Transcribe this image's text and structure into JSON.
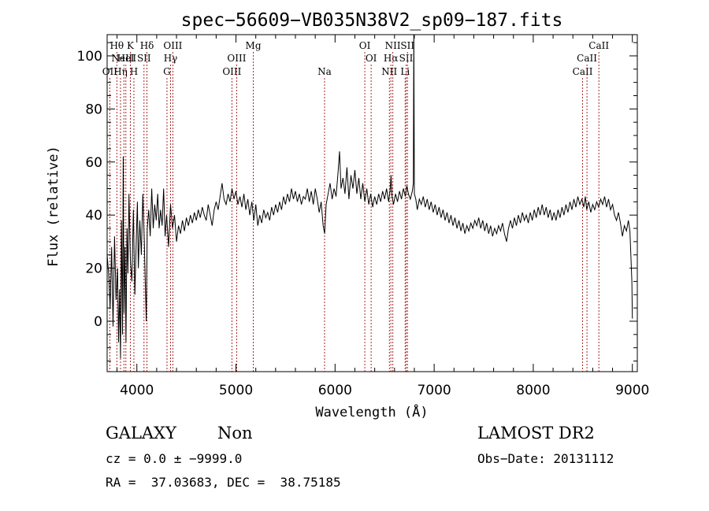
{
  "chart_data": {
    "type": "line",
    "title": "spec−56609−VB035N38V2_sp09−187.fits",
    "xlabel": "Wavelength (Å)",
    "ylabel": "Flux (relative)",
    "xlim": [
      3700,
      9050
    ],
    "ylim": [
      -19,
      108
    ],
    "xticks": [
      4000,
      5000,
      6000,
      7000,
      8000,
      9000
    ],
    "yticks": [
      0,
      20,
      40,
      60,
      80,
      100
    ],
    "grid": false,
    "series": [
      {
        "points": [
          [
            3700,
            25
          ],
          [
            3715,
            18
          ],
          [
            3730,
            5
          ],
          [
            3745,
            28
          ],
          [
            3760,
            -2
          ],
          [
            3775,
            32
          ],
          [
            3790,
            8
          ],
          [
            3805,
            20
          ],
          [
            3815,
            -8
          ],
          [
            3825,
            12
          ],
          [
            3835,
            -14
          ],
          [
            3845,
            38
          ],
          [
            3855,
            -5
          ],
          [
            3862,
            62
          ],
          [
            3870,
            3
          ],
          [
            3880,
            28
          ],
          [
            3890,
            -8
          ],
          [
            3900,
            35
          ],
          [
            3910,
            18
          ],
          [
            3920,
            48
          ],
          [
            3935,
            22
          ],
          [
            3950,
            15
          ],
          [
            3965,
            42
          ],
          [
            3980,
            10
          ],
          [
            3995,
            32
          ],
          [
            4005,
            45
          ],
          [
            4015,
            20
          ],
          [
            4030,
            38
          ],
          [
            4045,
            25
          ],
          [
            4060,
            48
          ],
          [
            4075,
            30
          ],
          [
            4085,
            15
          ],
          [
            4095,
            0
          ],
          [
            4105,
            35
          ],
          [
            4120,
            42
          ],
          [
            4135,
            32
          ],
          [
            4150,
            50
          ],
          [
            4165,
            35
          ],
          [
            4180,
            44
          ],
          [
            4195,
            38
          ],
          [
            4210,
            48
          ],
          [
            4225,
            35
          ],
          [
            4240,
            42
          ],
          [
            4255,
            36
          ],
          [
            4270,
            50
          ],
          [
            4285,
            32
          ],
          [
            4300,
            40
          ],
          [
            4320,
            28
          ],
          [
            4340,
            44
          ],
          [
            4360,
            35
          ],
          [
            4380,
            40
          ],
          [
            4400,
            30
          ],
          [
            4420,
            36
          ],
          [
            4440,
            33
          ],
          [
            4460,
            38
          ],
          [
            4480,
            34
          ],
          [
            4500,
            39
          ],
          [
            4520,
            36
          ],
          [
            4540,
            40
          ],
          [
            4560,
            37
          ],
          [
            4580,
            41
          ],
          [
            4600,
            38
          ],
          [
            4620,
            42
          ],
          [
            4640,
            39
          ],
          [
            4660,
            43
          ],
          [
            4680,
            40
          ],
          [
            4700,
            38
          ],
          [
            4720,
            44
          ],
          [
            4740,
            40
          ],
          [
            4760,
            36
          ],
          [
            4780,
            42
          ],
          [
            4800,
            45
          ],
          [
            4820,
            42
          ],
          [
            4840,
            47
          ],
          [
            4860,
            52
          ],
          [
            4880,
            46
          ],
          [
            4900,
            44
          ],
          [
            4920,
            48
          ],
          [
            4940,
            45
          ],
          [
            4960,
            50
          ],
          [
            4980,
            46
          ],
          [
            5000,
            49
          ],
          [
            5020,
            44
          ],
          [
            5040,
            47
          ],
          [
            5060,
            43
          ],
          [
            5080,
            48
          ],
          [
            5100,
            42
          ],
          [
            5120,
            46
          ],
          [
            5140,
            40
          ],
          [
            5160,
            45
          ],
          [
            5180,
            38
          ],
          [
            5200,
            44
          ],
          [
            5220,
            36
          ],
          [
            5240,
            40
          ],
          [
            5260,
            37
          ],
          [
            5280,
            42
          ],
          [
            5300,
            39
          ],
          [
            5320,
            41
          ],
          [
            5340,
            38
          ],
          [
            5360,
            43
          ],
          [
            5380,
            40
          ],
          [
            5400,
            44
          ],
          [
            5420,
            41
          ],
          [
            5440,
            45
          ],
          [
            5460,
            42
          ],
          [
            5480,
            47
          ],
          [
            5500,
            44
          ],
          [
            5520,
            48
          ],
          [
            5540,
            45
          ],
          [
            5560,
            50
          ],
          [
            5580,
            46
          ],
          [
            5600,
            49
          ],
          [
            5620,
            45
          ],
          [
            5640,
            48
          ],
          [
            5660,
            44
          ],
          [
            5680,
            47
          ],
          [
            5700,
            46
          ],
          [
            5720,
            50
          ],
          [
            5740,
            45
          ],
          [
            5760,
            49
          ],
          [
            5780,
            44
          ],
          [
            5800,
            50
          ],
          [
            5820,
            46
          ],
          [
            5840,
            41
          ],
          [
            5860,
            45
          ],
          [
            5880,
            36
          ],
          [
            5895,
            33
          ],
          [
            5910,
            44
          ],
          [
            5930,
            48
          ],
          [
            5950,
            52
          ],
          [
            5970,
            46
          ],
          [
            5990,
            50
          ],
          [
            6010,
            47
          ],
          [
            6030,
            56
          ],
          [
            6045,
            64
          ],
          [
            6060,
            50
          ],
          [
            6080,
            54
          ],
          [
            6100,
            48
          ],
          [
            6120,
            58
          ],
          [
            6140,
            46
          ],
          [
            6160,
            55
          ],
          [
            6180,
            50
          ],
          [
            6200,
            57
          ],
          [
            6220,
            48
          ],
          [
            6240,
            54
          ],
          [
            6260,
            46
          ],
          [
            6280,
            52
          ],
          [
            6300,
            45
          ],
          [
            6320,
            50
          ],
          [
            6340,
            44
          ],
          [
            6360,
            48
          ],
          [
            6380,
            43
          ],
          [
            6400,
            47
          ],
          [
            6420,
            44
          ],
          [
            6440,
            48
          ],
          [
            6460,
            45
          ],
          [
            6480,
            49
          ],
          [
            6500,
            46
          ],
          [
            6520,
            50
          ],
          [
            6540,
            45
          ],
          [
            6555,
            49
          ],
          [
            6565,
            55
          ],
          [
            6575,
            47
          ],
          [
            6590,
            44
          ],
          [
            6610,
            48
          ],
          [
            6630,
            45
          ],
          [
            6650,
            49
          ],
          [
            6670,
            46
          ],
          [
            6690,
            50
          ],
          [
            6710,
            47
          ],
          [
            6725,
            51
          ],
          [
            6740,
            48
          ],
          [
            6760,
            46
          ],
          [
            6780,
            49
          ],
          [
            6790,
            52
          ],
          [
            6795,
            110
          ],
          [
            6800,
            48
          ],
          [
            6815,
            46
          ],
          [
            6830,
            42
          ],
          [
            6850,
            46
          ],
          [
            6870,
            44
          ],
          [
            6890,
            47
          ],
          [
            6910,
            43
          ],
          [
            6930,
            46
          ],
          [
            6950,
            42
          ],
          [
            6970,
            45
          ],
          [
            6990,
            41
          ],
          [
            7010,
            44
          ],
          [
            7030,
            40
          ],
          [
            7050,
            43
          ],
          [
            7070,
            39
          ],
          [
            7090,
            42
          ],
          [
            7110,
            38
          ],
          [
            7130,
            41
          ],
          [
            7150,
            37
          ],
          [
            7170,
            40
          ],
          [
            7190,
            36
          ],
          [
            7210,
            39
          ],
          [
            7230,
            35
          ],
          [
            7250,
            38
          ],
          [
            7270,
            34
          ],
          [
            7290,
            37
          ],
          [
            7310,
            33
          ],
          [
            7330,
            36
          ],
          [
            7350,
            34
          ],
          [
            7370,
            37
          ],
          [
            7390,
            35
          ],
          [
            7410,
            38
          ],
          [
            7430,
            36
          ],
          [
            7450,
            39
          ],
          [
            7470,
            35
          ],
          [
            7490,
            38
          ],
          [
            7510,
            34
          ],
          [
            7530,
            37
          ],
          [
            7550,
            33
          ],
          [
            7570,
            36
          ],
          [
            7590,
            32
          ],
          [
            7610,
            35
          ],
          [
            7630,
            33
          ],
          [
            7650,
            36
          ],
          [
            7670,
            34
          ],
          [
            7690,
            37
          ],
          [
            7710,
            33
          ],
          [
            7730,
            30
          ],
          [
            7750,
            35
          ],
          [
            7770,
            38
          ],
          [
            7790,
            35
          ],
          [
            7810,
            39
          ],
          [
            7830,
            36
          ],
          [
            7850,
            40
          ],
          [
            7870,
            37
          ],
          [
            7890,
            41
          ],
          [
            7910,
            38
          ],
          [
            7930,
            40
          ],
          [
            7950,
            37
          ],
          [
            7970,
            41
          ],
          [
            7990,
            38
          ],
          [
            8010,
            42
          ],
          [
            8030,
            39
          ],
          [
            8050,
            43
          ],
          [
            8070,
            40
          ],
          [
            8090,
            44
          ],
          [
            8110,
            40
          ],
          [
            8130,
            43
          ],
          [
            8150,
            39
          ],
          [
            8170,
            42
          ],
          [
            8190,
            38
          ],
          [
            8210,
            41
          ],
          [
            8230,
            38
          ],
          [
            8250,
            42
          ],
          [
            8270,
            39
          ],
          [
            8290,
            43
          ],
          [
            8310,
            40
          ],
          [
            8330,
            44
          ],
          [
            8350,
            41
          ],
          [
            8370,
            45
          ],
          [
            8390,
            42
          ],
          [
            8410,
            46
          ],
          [
            8430,
            43
          ],
          [
            8450,
            47
          ],
          [
            8470,
            44
          ],
          [
            8490,
            46
          ],
          [
            8510,
            43
          ],
          [
            8525,
            47
          ],
          [
            8540,
            42
          ],
          [
            8560,
            45
          ],
          [
            8580,
            41
          ],
          [
            8600,
            44
          ],
          [
            8620,
            42
          ],
          [
            8640,
            45
          ],
          [
            8660,
            43
          ],
          [
            8680,
            46
          ],
          [
            8700,
            44
          ],
          [
            8720,
            47
          ],
          [
            8740,
            43
          ],
          [
            8760,
            46
          ],
          [
            8780,
            42
          ],
          [
            8800,
            44
          ],
          [
            8820,
            40
          ],
          [
            8840,
            38
          ],
          [
            8860,
            41
          ],
          [
            8880,
            37
          ],
          [
            8900,
            32
          ],
          [
            8920,
            36
          ],
          [
            8940,
            34
          ],
          [
            8960,
            38
          ],
          [
            8975,
            34
          ],
          [
            8985,
            25
          ],
          [
            8995,
            15
          ],
          [
            9000,
            1
          ]
        ]
      }
    ],
    "lines": [
      {
        "x": 3727,
        "label": "OII",
        "row": 3
      },
      {
        "x": 3798,
        "label": "Hθ",
        "row": 1
      },
      {
        "x": 3835,
        "label": "Hη",
        "row": 3
      },
      {
        "x": 3869,
        "label": "NeIII",
        "row": 2
      },
      {
        "x": 3889,
        "label": "HeI",
        "row": 2
      },
      {
        "x": 3934,
        "label": "K",
        "row": 1
      },
      {
        "x": 3970,
        "label": "H",
        "row": 3
      },
      {
        "x": 4072,
        "label": "SII",
        "row": 2
      },
      {
        "x": 4102,
        "label": "Hδ",
        "row": 1
      },
      {
        "x": 4304,
        "label": "G",
        "row": 3
      },
      {
        "x": 4340,
        "label": "Hγ",
        "row": 2
      },
      {
        "x": 4363,
        "label": "OIII",
        "row": 1
      },
      {
        "x": 4959,
        "label": "OIII",
        "row": 3
      },
      {
        "x": 5007,
        "label": "OIII",
        "row": 2
      },
      {
        "x": 5175,
        "label": "Mg",
        "row": 1
      },
      {
        "x": 5894,
        "label": "Na",
        "row": 3
      },
      {
        "x": 6300,
        "label": "OI",
        "row": 1
      },
      {
        "x": 6364,
        "label": "OI",
        "row": 2
      },
      {
        "x": 6548,
        "label": "NII",
        "row": 3
      },
      {
        "x": 6563,
        "label": "Hα",
        "row": 2
      },
      {
        "x": 6583,
        "label": "NII",
        "row": 1
      },
      {
        "x": 6707,
        "label": "Li",
        "row": 3
      },
      {
        "x": 6717,
        "label": "SII",
        "row": 2
      },
      {
        "x": 6731,
        "label": "SII",
        "row": 1
      },
      {
        "x": 8498,
        "label": "CaII",
        "row": 3
      },
      {
        "x": 8542,
        "label": "CaII",
        "row": 2
      },
      {
        "x": 8662,
        "label": "CaII",
        "row": 1
      }
    ]
  },
  "footer": {
    "class_label": "GALAXY",
    "subclass": "Non",
    "survey": "LAMOST DR2",
    "cz": "cz = 0.0 ± −9999.0",
    "obs_date": "Obs−Date: 20131112",
    "coords": "RA =  37.03683, DEC =  38.75185"
  }
}
